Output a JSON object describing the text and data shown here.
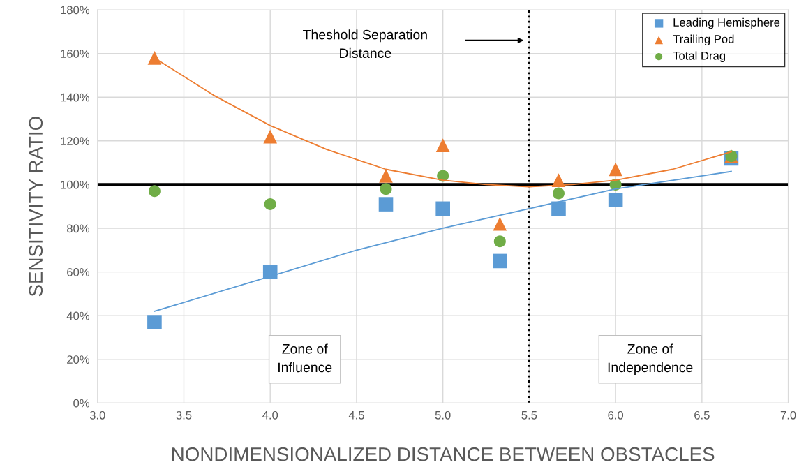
{
  "chart_data": {
    "type": "scatter",
    "xlabel": "NONDIMENSIONALIZED DISTANCE BETWEEN OBSTACLES",
    "ylabel": "SENSITIVITY RATIO",
    "x": [
      3.33,
      4.0,
      4.67,
      5.0,
      5.33,
      5.67,
      6.0,
      6.67
    ],
    "series": [
      {
        "name": "Leading Hemisphere",
        "color": "#5b9bd5",
        "marker": "square",
        "values": [
          37,
          60,
          91,
          89,
          65,
          89,
          93,
          112
        ]
      },
      {
        "name": "Trailing Pod",
        "color": "#ed7d31",
        "marker": "triangle",
        "values": [
          158,
          122,
          104,
          118,
          82,
          102,
          107,
          113
        ]
      },
      {
        "name": "Total Drag",
        "color": "#70ad47",
        "marker": "circle",
        "values": [
          97,
          91,
          98,
          104,
          74,
          96,
          100,
          113
        ]
      },
      {
        "type": "line",
        "color": "#ed7d31",
        "x": [
          3.33,
          3.67,
          4.0,
          4.33,
          4.67,
          5.0,
          5.25,
          5.5,
          5.75,
          6.0,
          6.33,
          6.67
        ],
        "values": [
          158,
          141,
          127,
          116,
          107,
          102,
          100,
          99,
          100,
          102,
          107,
          115
        ]
      },
      {
        "type": "line",
        "color": "#5b9bd5",
        "x": [
          3.33,
          4.0,
          4.5,
          5.0,
          5.5,
          6.0,
          6.67
        ],
        "values": [
          42,
          58,
          70,
          80,
          89,
          98,
          106
        ]
      }
    ],
    "xlim": [
      3.0,
      7.0
    ],
    "xticks": [
      {
        "value": 3.0,
        "label": "3.0"
      },
      {
        "value": 3.5,
        "label": "3.5"
      },
      {
        "value": 4.0,
        "label": "4.0"
      },
      {
        "value": 4.5,
        "label": "4.5"
      },
      {
        "value": 5.0,
        "label": "5.0"
      },
      {
        "value": 5.5,
        "label": "5.5"
      },
      {
        "value": 6.0,
        "label": "6.0"
      },
      {
        "value": 6.5,
        "label": "6.5"
      },
      {
        "value": 7.0,
        "label": "7.0"
      }
    ],
    "ylim": [
      0,
      180
    ],
    "yticks": [
      {
        "value": 0,
        "label": "0%"
      },
      {
        "value": 20,
        "label": "20%"
      },
      {
        "value": 40,
        "label": "40%"
      },
      {
        "value": 60,
        "label": "60%"
      },
      {
        "value": 80,
        "label": "80%"
      },
      {
        "value": 100,
        "label": "100%"
      },
      {
        "value": 120,
        "label": "120%"
      },
      {
        "value": 140,
        "label": "140%"
      },
      {
        "value": 160,
        "label": "160%"
      },
      {
        "value": 180,
        "label": "180%"
      }
    ],
    "ref_lines": [
      {
        "axis": "y",
        "value": 100,
        "color": "#000000",
        "line_style": "solid"
      },
      {
        "axis": "x",
        "value": 5.5,
        "color": "#000000",
        "line_style": "dotted"
      }
    ],
    "annotations": [
      "Theshold Separation Distance",
      "Zone of Influence",
      "Zone of Independence"
    ],
    "grid": true,
    "legend": "top right"
  }
}
